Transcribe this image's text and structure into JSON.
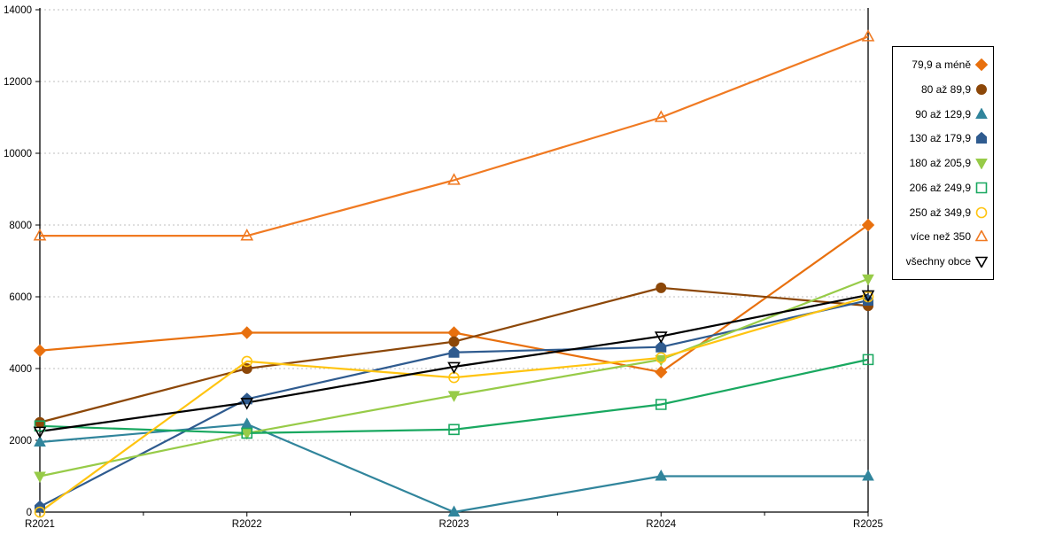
{
  "chart_data": {
    "type": "line",
    "categories": [
      "R2021",
      "R2022",
      "R2023",
      "R2024",
      "R2025"
    ],
    "series": [
      {
        "name": "79,9 a méně",
        "color": "#E8700E",
        "marker": "diamond",
        "filled": true,
        "values": [
          4500,
          5000,
          5000,
          3900,
          8000
        ]
      },
      {
        "name": "80 až 89,9",
        "color": "#8C4708",
        "marker": "circle",
        "filled": true,
        "values": [
          2500,
          4000,
          4750,
          6250,
          5750
        ]
      },
      {
        "name": "90 až 129,9",
        "color": "#31859C",
        "marker": "triangle-up",
        "filled": true,
        "values": [
          1950,
          2450,
          0,
          1000,
          1000
        ]
      },
      {
        "name": "130 až 179,9",
        "color": "#2F5B8F",
        "marker": "pentagon",
        "filled": true,
        "values": [
          150,
          3150,
          4450,
          4600,
          5900
        ]
      },
      {
        "name": "180 až 205,9",
        "color": "#97CB48",
        "marker": "triangle-down",
        "filled": true,
        "values": [
          1000,
          2200,
          3250,
          4250,
          6500
        ]
      },
      {
        "name": "206 až 249,9",
        "color": "#19A860",
        "marker": "square",
        "filled": false,
        "values": [
          2400,
          2200,
          2300,
          3000,
          4250
        ]
      },
      {
        "name": "250 až 349,9",
        "color": "#FFC410",
        "marker": "circle",
        "filled": false,
        "values": [
          0,
          4200,
          3750,
          4300,
          6000
        ]
      },
      {
        "name": "více než 350",
        "color": "#F07A22",
        "marker": "triangle-up",
        "filled": false,
        "values": [
          7700,
          7700,
          9250,
          11000,
          13250
        ]
      },
      {
        "name": "všechny obce",
        "color": "#000000",
        "marker": "triangle-down",
        "filled": false,
        "values": [
          2250,
          3050,
          4050,
          4900,
          6050
        ]
      }
    ],
    "title": "",
    "xlabel": "",
    "ylabel": "",
    "ylim": [
      0,
      14000
    ],
    "ytick_step": 2000,
    "y_tick_labels": [
      "0",
      "2000",
      "4000",
      "6000",
      "8000",
      "10000",
      "12000",
      "14000"
    ],
    "x_tick_labels": [
      "R2021",
      "R2022",
      "R2023",
      "R2024",
      "R2025"
    ],
    "grid": "horizontal dotted",
    "legend_position": "right",
    "axis_color": "#000000",
    "gridline_color": "#bfbfbf"
  }
}
